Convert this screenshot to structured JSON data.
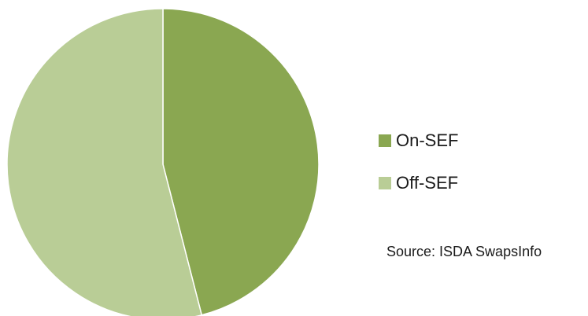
{
  "chart_data": {
    "type": "pie",
    "title": "",
    "slices": [
      {
        "name": "On-SEF",
        "value": 46,
        "color": "#8aa751"
      },
      {
        "name": "Off-SEF",
        "value": 54,
        "color": "#b9cd96"
      }
    ],
    "start_angle_deg": 0,
    "direction": "clockwise",
    "legend_position": "right",
    "source": "Source: ISDA SwapsInfo"
  }
}
